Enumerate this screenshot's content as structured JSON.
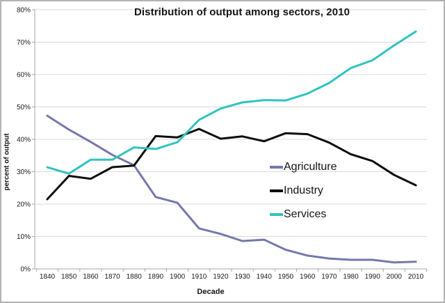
{
  "chart_data": {
    "type": "line",
    "title": "Distribution of output among sectors, 2010",
    "xlabel": "Decade",
    "ylabel": "percent of output",
    "categories": [
      "1840",
      "1850",
      "1860",
      "1870",
      "1880",
      "1890",
      "1900",
      "1910",
      "1920",
      "1930",
      "1940",
      "1950",
      "1960",
      "1970",
      "1980",
      "1990",
      "2000",
      "2010"
    ],
    "y_tick_labels": [
      "0%",
      "10%",
      "20%",
      "30%",
      "40%",
      "50%",
      "60%",
      "70%",
      "80%"
    ],
    "ylim": [
      0,
      80
    ],
    "y_tick_step": 10,
    "grid": "horizontal",
    "legend_position": "inside-right",
    "series": [
      {
        "name": "Agriculture",
        "color": "#7577AD",
        "values": [
          47.3,
          43.0,
          39.2,
          35.2,
          32.0,
          22.2,
          20.4,
          12.5,
          10.8,
          8.6,
          9.0,
          5.9,
          4.1,
          3.2,
          2.8,
          2.8,
          2.0,
          2.2
        ]
      },
      {
        "name": "Industry",
        "color": "#0d0d0d",
        "values": [
          21.5,
          28.7,
          27.8,
          31.4,
          31.9,
          41.0,
          40.6,
          43.2,
          40.2,
          40.9,
          39.4,
          41.9,
          41.6,
          39.0,
          35.4,
          33.3,
          29.0,
          25.8
        ]
      },
      {
        "name": "Services",
        "color": "#31C3BF",
        "values": [
          31.4,
          29.4,
          33.7,
          33.7,
          37.5,
          37.0,
          39.1,
          46.0,
          49.5,
          51.4,
          52.1,
          52.0,
          54.1,
          57.4,
          62.0,
          64.4,
          69.0,
          73.3
        ]
      }
    ]
  },
  "colors": {
    "gridline": "#d9d9d9",
    "axis": "#a6a6a6",
    "tick_text": "#1a1a1a",
    "frame_border": "#b3b3b3"
  }
}
